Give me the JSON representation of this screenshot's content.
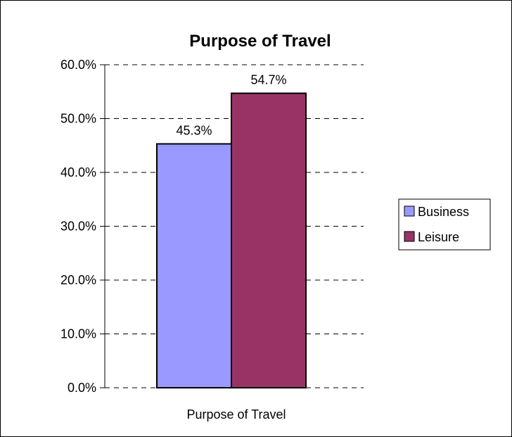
{
  "chart_data": {
    "type": "bar",
    "title": "Purpose of Travel",
    "xlabel": "Purpose of Travel",
    "ylabel": "",
    "categories": [
      "Purpose of Travel"
    ],
    "series": [
      {
        "name": "Business",
        "values": [
          45.3
        ],
        "color": "#9999ff",
        "label": "45.3%"
      },
      {
        "name": "Leisure",
        "values": [
          54.7
        ],
        "color": "#993366",
        "label": "54.7%"
      }
    ],
    "ylim": [
      0,
      60
    ],
    "yticks": [
      0,
      10,
      20,
      30,
      40,
      50,
      60
    ],
    "ytick_labels": [
      "0.0%",
      "10.0%",
      "20.0%",
      "30.0%",
      "40.0%",
      "50.0%",
      "60.0%"
    ],
    "grid": true,
    "grid_style": "dashed",
    "legend_position": "right"
  }
}
